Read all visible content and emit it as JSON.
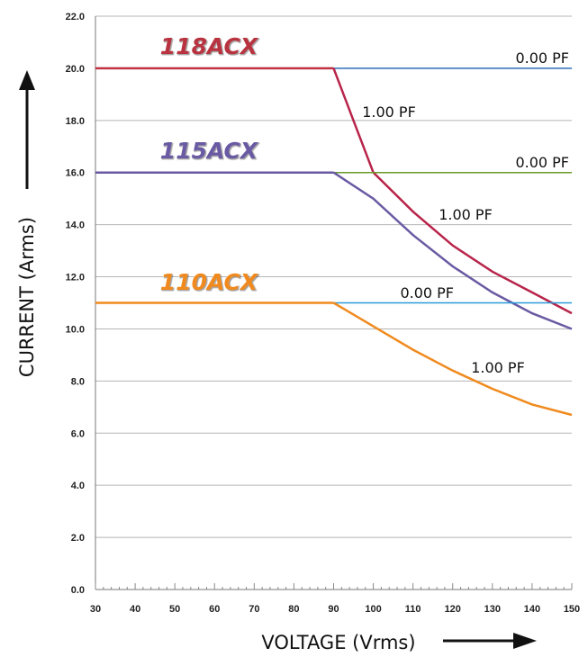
{
  "chart_data": {
    "type": "line",
    "xlabel": "VOLTAGE (Vrms)",
    "ylabel": "CURRENT (Arms)",
    "xlim": [
      30,
      150
    ],
    "ylim": [
      0,
      22
    ],
    "x_ticks": [
      "30",
      "40",
      "50",
      "60",
      "70",
      "80",
      "90",
      "100",
      "110",
      "120",
      "130",
      "140",
      "150"
    ],
    "y_ticks": [
      "0.0",
      "2.0",
      "4.0",
      "6.0",
      "8.0",
      "10.0",
      "12.0",
      "14.0",
      "16.0",
      "18.0",
      "20.0",
      "22.0"
    ],
    "grid": "horizontal",
    "groups": [
      {
        "model": "118ACX",
        "model_color": "#b8333f",
        "flat_color": "#c03040",
        "series": [
          {
            "name": "0.00 PF",
            "color": "#2f6fb7",
            "x": [
              30,
              90,
              150
            ],
            "y": [
              20.0,
              20.0,
              20.0
            ]
          },
          {
            "name": "1.00 PF",
            "color": "#b8244a",
            "x": [
              30,
              90,
              95,
              100,
              110,
              120,
              130,
              140,
              150
            ],
            "y": [
              20.0,
              20.0,
              18.0,
              16.0,
              14.5,
              13.2,
              12.2,
              11.4,
              10.6
            ]
          }
        ]
      },
      {
        "model": "115ACX",
        "model_color": "#6a5aa3",
        "flat_color": "#6a5aa3",
        "series": [
          {
            "name": "0.00 PF",
            "color": "#6a9a2e",
            "x": [
              30,
              90,
              150
            ],
            "y": [
              16.0,
              16.0,
              16.0
            ]
          },
          {
            "name": "1.00 PF",
            "color": "#6a5aa3",
            "x": [
              30,
              90,
              100,
              110,
              120,
              130,
              140,
              150
            ],
            "y": [
              16.0,
              16.0,
              15.0,
              13.6,
              12.4,
              11.4,
              10.6,
              10.0
            ]
          }
        ]
      },
      {
        "model": "110ACX",
        "model_color": "#f08a1e",
        "flat_color": "#f08a1e",
        "series": [
          {
            "name": "0.00 PF",
            "color": "#2a9ad8",
            "x": [
              30,
              90,
              150
            ],
            "y": [
              11.0,
              11.0,
              11.0
            ]
          },
          {
            "name": "1.00 PF",
            "color": "#f08a1e",
            "x": [
              30,
              90,
              100,
              110,
              120,
              130,
              140,
              150
            ],
            "y": [
              11.0,
              11.0,
              10.1,
              9.2,
              8.4,
              7.7,
              7.1,
              6.7
            ]
          }
        ]
      }
    ]
  }
}
